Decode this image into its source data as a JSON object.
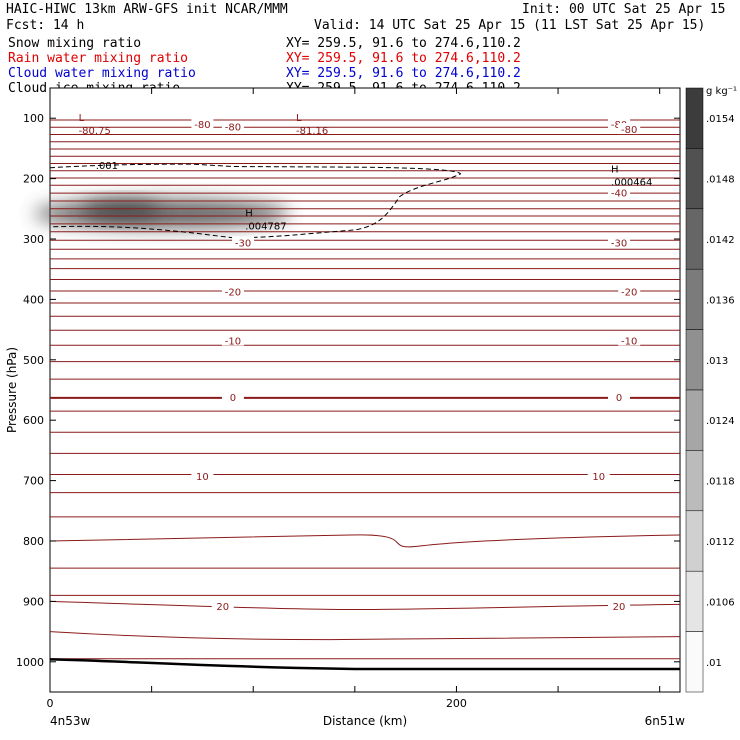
{
  "header": {
    "title": "HAIC-HIWC 13km ARW-GFS init   NCAR/MMM",
    "init": "Init: 00 UTC Sat 25 Apr 15",
    "fcst": "Fcst:   14 h",
    "valid": "Valid: 14 UTC Sat 25 Apr 15 (11 LST Sat 25 Apr 15)",
    "fields": [
      {
        "name": "Snow mixing ratio",
        "xy": "XY= 259.5, 91.6 to 274.6,110.2",
        "color": "#000000"
      },
      {
        "name": "Rain water mixing ratio",
        "xy": "XY= 259.5, 91.6 to 274.6,110.2",
        "color": "#e00000"
      },
      {
        "name": "Cloud water mixing ratio",
        "xy": "XY= 259.5, 91.6 to 274.6,110.2",
        "color": "#0000d0"
      },
      {
        "name": "Cloud ice mixing ratio",
        "xy": "XY= 259.5, 91.6 to 274.6,110.2",
        "color": "#000000"
      }
    ]
  },
  "chart_data": {
    "type": "contour-cross-section",
    "xlabel": "Distance (km)",
    "ylabel": "Pressure (hPa)",
    "x_ticks": [
      0,
      200
    ],
    "xlim": [
      0,
      310
    ],
    "y_ticks": [
      100,
      200,
      300,
      400,
      500,
      600,
      700,
      800,
      900,
      1000
    ],
    "ylim": [
      50,
      1050
    ],
    "x_start_label": "4n53w",
    "x_end_label": "6n51w",
    "colorbar": {
      "unit": "g kg⁻¹",
      "ticks": [
        ".0154",
        ".0148",
        ".0142",
        ".0136",
        ".013",
        ".0124",
        ".0118",
        ".0112",
        ".0106",
        ".01"
      ]
    },
    "temperature_contours": [
      -80,
      -70,
      -60,
      -50,
      -40,
      -30,
      -20,
      -10,
      0,
      10,
      20
    ],
    "contour_labels": [
      "-80",
      "-80",
      "-80",
      "-80",
      "-40",
      "-30",
      "-30",
      "-20",
      "-20",
      "-10",
      "-10",
      "0",
      "0",
      "10",
      "10",
      "20",
      "20"
    ],
    "extrema": [
      {
        "type": "L",
        "value": "-80.75",
        "x": 18,
        "p": 110
      },
      {
        "type": "L",
        "value": "-81.16",
        "x": 125,
        "p": 110
      },
      {
        "type": "H",
        "value": ".000464",
        "x": 280,
        "p": 195
      },
      {
        "type": "H",
        "value": ".004787",
        "x": 100,
        "p": 268
      }
    ],
    "cloud_ice_contour": {
      "label": ".001"
    },
    "snow_max": {
      "x_range": [
        0,
        120
      ],
      "p_range": [
        250,
        300
      ],
      "max": 0.0154
    }
  }
}
